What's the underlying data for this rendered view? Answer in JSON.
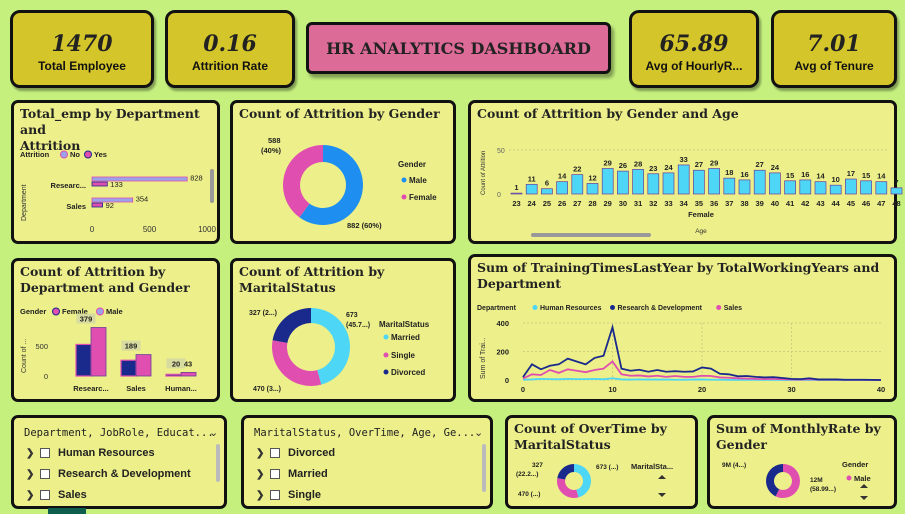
{
  "kpis": [
    {
      "value": "1470",
      "label": "Total Employee"
    },
    {
      "value": "0.16",
      "label": "Attrition Rate"
    },
    {
      "value": "65.89",
      "label": "Avg of HourlyR..."
    },
    {
      "value": "7.01",
      "label": "Avg of Tenure"
    }
  ],
  "dashboard_title": "HR ANALYTICS DASHBOARD",
  "colors": {
    "background": "#c5f07e",
    "card": "#ecef8a",
    "kpi": "#d4c52b",
    "title": "#dc6b97",
    "cyan": "#4dd6f5",
    "blue": "#1e8ff0",
    "pink": "#e04fb0",
    "navy": "#1a2a8c"
  },
  "card1": {
    "title1": "Total_emp by Department and",
    "title2": "Attrition",
    "legend_title": "Attrition",
    "legend_no": "No",
    "legend_yes": "Yes",
    "y_axis_label": "Department",
    "y_short_1": "Researc...",
    "y_short_2": "Sales"
  },
  "card2": {
    "title": "Count of Attrition by Gender",
    "legend_title": "Gender",
    "legend_male": "Male",
    "legend_female": "Female",
    "label_female_1": "588",
    "label_female_2": "(40%)",
    "label_male": "882 (60%)"
  },
  "card3": {
    "title": "Count of Attrition by Gender and Age",
    "x_title": "Female",
    "x_axis_label": "Age",
    "y_axis_label": "Count of Attrition",
    "y_tick_50": "50",
    "y_tick_0": "0"
  },
  "card4": {
    "title1": "Count of Attrition by",
    "title2": "Department and Gender",
    "legend_title": "Gender",
    "legend_female": "Female",
    "legend_male": "Male",
    "y_axis_label": "Count of ...",
    "y_tick_500": "500",
    "y_tick_0": "0"
  },
  "card5": {
    "title1": "Count of Attrition by",
    "title2": "MaritalStatus",
    "legend_title": "MaritalStatus",
    "legend_married": "Married",
    "legend_single": "Single",
    "legend_divorced": "Divorced",
    "label_married_1": "673",
    "label_married_2": "(45.7...)",
    "label_divorced": "327 (2...)",
    "label_single": "470 (3...)"
  },
  "card6": {
    "title1": "Sum of TrainingTimesLastYear by TotalWorkingYears and",
    "title2": "Department",
    "legend_title": "Department",
    "y_axis_label": "Sum of Trai..."
  },
  "slicer1": {
    "header": "Department, JobRole, Educat...",
    "items": [
      "Human Resources",
      "Research & Development",
      "Sales"
    ]
  },
  "slicer2": {
    "header": "MaritalStatus, OverTime, Age, Ge...",
    "items": [
      "Divorced",
      "Married",
      "Single"
    ]
  },
  "card7": {
    "title1": "Count of OverTime by",
    "title2": "MaritalStatus",
    "legend_title": "MaritalSta...",
    "label_1a": "327",
    "label_1b": "(22.2...)",
    "label_2": "673 (...)",
    "label_3": "470 (...)"
  },
  "card8": {
    "title1": "Sum of MonthlyRate by",
    "title2": "Gender",
    "legend_title": "Gender",
    "legend_male": "Male",
    "label_1": "9M (4...)",
    "label_2a": "12M",
    "label_2b": "(58.99...)"
  },
  "chart_data": [
    {
      "type": "bar",
      "title": "Total_emp by Department and Attrition",
      "orientation": "horizontal",
      "categories": [
        "Research & Development",
        "Sales"
      ],
      "series": [
        {
          "name": "No",
          "values": [
            828,
            354
          ]
        },
        {
          "name": "Yes",
          "values": [
            133,
            92
          ]
        }
      ],
      "xlim": [
        0,
        1000
      ],
      "x_ticks": [
        "0",
        "500",
        "1000"
      ]
    },
    {
      "type": "pie",
      "title": "Count of Attrition by Gender",
      "labels": [
        "Male",
        "Female"
      ],
      "values": [
        882,
        588
      ]
    },
    {
      "type": "bar",
      "title": "Count of Attrition by Gender and Age",
      "x": [
        "23",
        "24",
        "25",
        "26",
        "27",
        "28",
        "29",
        "30",
        "31",
        "32",
        "33",
        "34",
        "35",
        "36",
        "37",
        "38",
        "39",
        "40",
        "41",
        "42",
        "43",
        "44",
        "45",
        "46",
        "47",
        "48"
      ],
      "values": [
        1,
        11,
        6,
        14,
        22,
        12,
        29,
        26,
        28,
        23,
        24,
        33,
        27,
        29,
        18,
        16,
        27,
        24,
        15,
        16,
        14,
        10,
        17,
        15,
        14,
        7
      ],
      "ylim": [
        0,
        50
      ]
    },
    {
      "type": "bar",
      "title": "Count of Attrition by Department and Gender",
      "categories": [
        "Researc...",
        "Sales",
        "Human..."
      ],
      "series": [
        {
          "name": "Female",
          "values": [
            379,
            189,
            20
          ]
        },
        {
          "name": "Male",
          "values": [
            582,
            257,
            43
          ]
        }
      ],
      "ylim": [
        0,
        600
      ]
    },
    {
      "type": "pie",
      "title": "Count of Attrition by MaritalStatus",
      "labels": [
        "Married",
        "Single",
        "Divorced"
      ],
      "values": [
        673,
        470,
        327
      ]
    },
    {
      "type": "line",
      "title": "Sum of TrainingTimesLastYear by TotalWorkingYears and Department",
      "x": [
        0,
        1,
        2,
        3,
        4,
        5,
        6,
        7,
        8,
        9,
        10,
        11,
        12,
        13,
        14,
        15,
        16,
        17,
        18,
        19,
        20,
        21,
        22,
        23,
        24,
        25,
        26,
        27,
        28,
        29,
        30,
        31,
        32,
        33,
        34,
        35,
        36,
        37,
        38,
        40
      ],
      "series": [
        {
          "name": "Human Resources",
          "values": [
            2,
            4,
            8,
            6,
            5,
            8,
            6,
            6,
            8,
            5,
            12,
            4,
            3,
            4,
            3,
            3,
            3,
            2,
            2,
            3,
            4,
            2,
            2,
            1,
            1,
            1,
            1,
            1,
            1,
            0,
            0,
            0,
            0,
            0,
            0,
            0,
            0,
            0,
            0,
            0
          ]
        },
        {
          "name": "Research & Development",
          "values": [
            20,
            110,
            75,
            100,
            110,
            150,
            130,
            110,
            155,
            170,
            370,
            80,
            65,
            72,
            58,
            70,
            58,
            62,
            58,
            60,
            88,
            80,
            44,
            40,
            26,
            28,
            22,
            18,
            20,
            14,
            8,
            6,
            12,
            4,
            4,
            4,
            2,
            2,
            2,
            0
          ]
        },
        {
          "name": "Sales",
          "values": [
            10,
            40,
            35,
            70,
            50,
            75,
            65,
            55,
            70,
            80,
            130,
            40,
            30,
            32,
            25,
            30,
            22,
            28,
            22,
            22,
            30,
            28,
            18,
            16,
            12,
            10,
            8,
            6,
            8,
            5,
            4,
            3,
            5,
            2,
            2,
            2,
            1,
            1,
            1,
            0
          ]
        }
      ],
      "ylim": [
        0,
        400
      ],
      "y_ticks": [
        "0",
        "200",
        "400"
      ],
      "x_ticks": [
        "0",
        "10",
        "20",
        "30",
        "40"
      ]
    },
    {
      "type": "pie",
      "title": "Count of OverTime by MaritalStatus",
      "labels": [
        "Married",
        "Single",
        "Divorced"
      ],
      "values": [
        673,
        470,
        327
      ]
    },
    {
      "type": "pie",
      "title": "Sum of MonthlyRate by Gender",
      "labels": [
        "Male",
        "Female"
      ],
      "values": [
        12,
        9
      ]
    }
  ]
}
